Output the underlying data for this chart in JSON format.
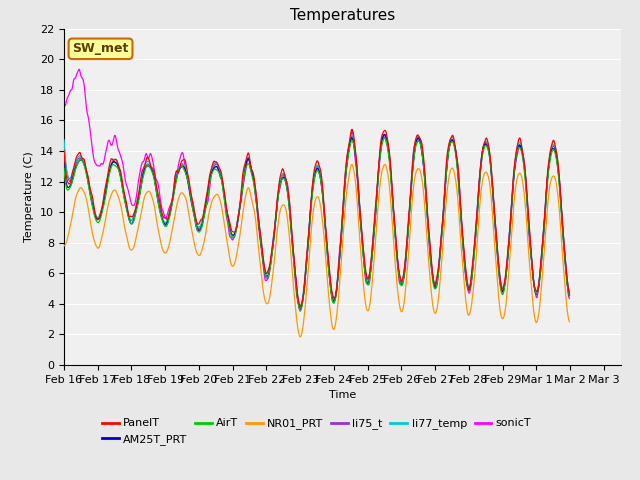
{
  "title": "Temperatures",
  "xlabel": "Time",
  "ylabel": "Temperature (C)",
  "ylim": [
    0,
    22
  ],
  "yticks": [
    0,
    2,
    4,
    6,
    8,
    10,
    12,
    14,
    16,
    18,
    20,
    22
  ],
  "series_colors": {
    "PanelT": "#ff0000",
    "AM25T_PRT": "#0000cc",
    "AirT": "#00cc00",
    "NR01_PRT": "#ff9900",
    "li75_t": "#9933cc",
    "li77_temp": "#00cccc",
    "sonicT": "#ff00ff"
  },
  "annotation_text": "SW_met",
  "bg_color": "#e8e8e8",
  "plot_bg": "#f0f0f0",
  "title_fontsize": 11,
  "axis_fontsize": 8,
  "legend_fontsize": 8
}
